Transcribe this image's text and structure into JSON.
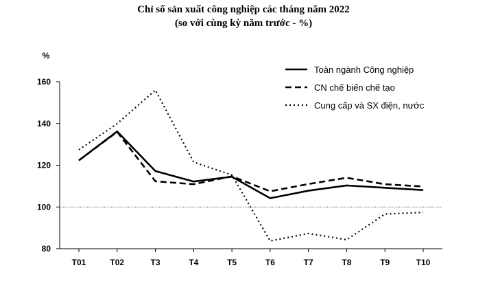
{
  "chart_data": {
    "type": "line",
    "title": "Chỉ số sản xuất công nghiệp các tháng năm 2022",
    "subtitle": "(so với cùng kỳ năm trước - %)",
    "ylabel": "%",
    "xlabel": "",
    "ylim": [
      80,
      160
    ],
    "yticks": [
      80,
      100,
      120,
      140,
      160
    ],
    "reference_line": 100,
    "grid": false,
    "legend_position": "top-right",
    "categories": [
      "T01",
      "T02",
      "T3",
      "T4",
      "T5",
      "T6",
      "T7",
      "T8",
      "T9",
      "T10"
    ],
    "series": [
      {
        "name": "Toàn ngành Công nghiệp",
        "style": "solid",
        "values": [
          122.3,
          136.2,
          117.2,
          112.2,
          114.5,
          104.2,
          107.8,
          110.3,
          109.2,
          108.1
        ]
      },
      {
        "name": "CN chế biến chế tạo",
        "style": "dashed",
        "values": [
          122.3,
          136.0,
          112.3,
          110.9,
          114.7,
          107.5,
          111.0,
          114.0,
          110.9,
          109.8
        ]
      },
      {
        "name": "Cung cấp và SX điện, nước",
        "style": "dotted",
        "values": [
          127.4,
          139.9,
          156.0,
          121.5,
          115.3,
          83.7,
          87.3,
          84.3,
          96.6,
          97.4
        ]
      }
    ]
  }
}
